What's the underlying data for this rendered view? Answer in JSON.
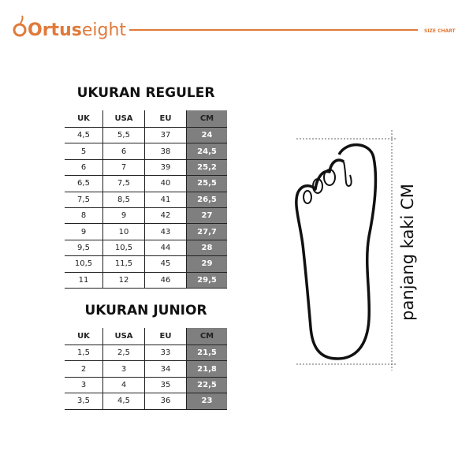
{
  "header": {
    "brand_bold": "Ortus",
    "brand_light": "eight",
    "label": "SIZE CHART"
  },
  "tables": [
    {
      "title": "UKURAN REGULER",
      "columns": [
        "UK",
        "USA",
        "EU",
        "CM"
      ],
      "rows": [
        [
          "4,5",
          "5,5",
          "37",
          "24"
        ],
        [
          "5",
          "6",
          "38",
          "24,5"
        ],
        [
          "6",
          "7",
          "39",
          "25,2"
        ],
        [
          "6,5",
          "7,5",
          "40",
          "25,5"
        ],
        [
          "7,5",
          "8,5",
          "41",
          "26,5"
        ],
        [
          "8",
          "9",
          "42",
          "27"
        ],
        [
          "9",
          "10",
          "43",
          "27,7"
        ],
        [
          "9,5",
          "10,5",
          "44",
          "28"
        ],
        [
          "10,5",
          "11,5",
          "45",
          "29"
        ],
        [
          "11",
          "12",
          "46",
          "29,5"
        ]
      ]
    },
    {
      "title": "UKURAN JUNIOR",
      "columns": [
        "UK",
        "USA",
        "EU",
        "CM"
      ],
      "rows": [
        [
          "1,5",
          "2,5",
          "33",
          "21,5"
        ],
        [
          "2",
          "3",
          "34",
          "21,8"
        ],
        [
          "3",
          "4",
          "35",
          "22,5"
        ],
        [
          "3,5",
          "4,5",
          "36",
          "23"
        ]
      ]
    }
  ],
  "foot_label": "panjang kaki CM"
}
